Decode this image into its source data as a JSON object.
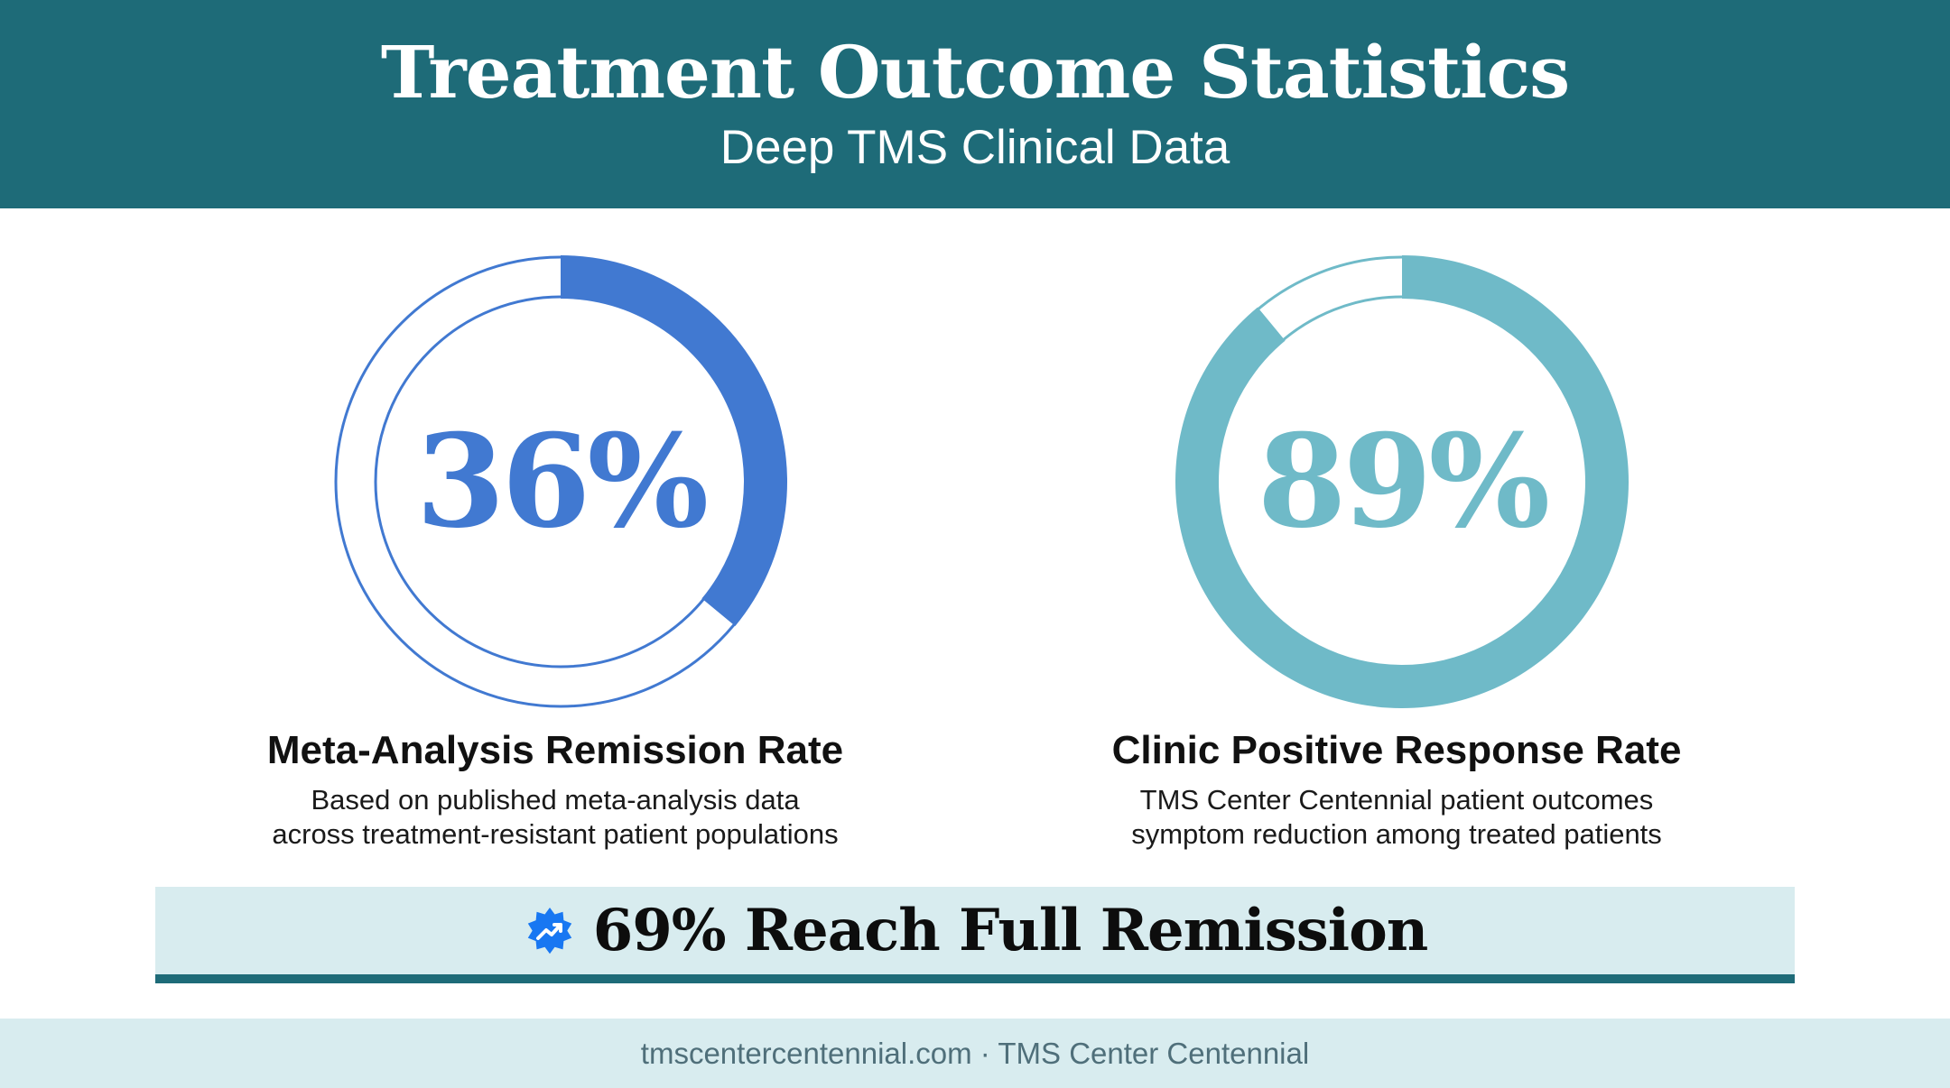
{
  "header": {
    "title": "Treatment Outcome Statistics",
    "subtitle": "Deep TMS Clinical Data"
  },
  "stats": [
    {
      "value": "36%",
      "fraction": 0.36,
      "color": "#4179d1",
      "label": "Meta-Analysis Remission Rate",
      "desc_line1": "Based on published meta-analysis data",
      "desc_line2": "across treatment-resistant patient populations"
    },
    {
      "value": "89%",
      "fraction": 0.89,
      "color": "#6fbac8",
      "label": "Clinic Positive Response Rate",
      "desc_line1": "TMS Center Centennial patient outcomes",
      "desc_line2": "symptom reduction among treated patients"
    }
  ],
  "banner": {
    "icon": "verified-badge-trend-icon",
    "text": "69% Reach Full Remission",
    "accent": "#1e6b78"
  },
  "footer": {
    "text": "tmscentercentennial.com · TMS Center Centennial"
  },
  "colors": {
    "header_bg": "#1e6b78",
    "banner_bg": "#d8ecef",
    "badge": "#1877f2"
  }
}
